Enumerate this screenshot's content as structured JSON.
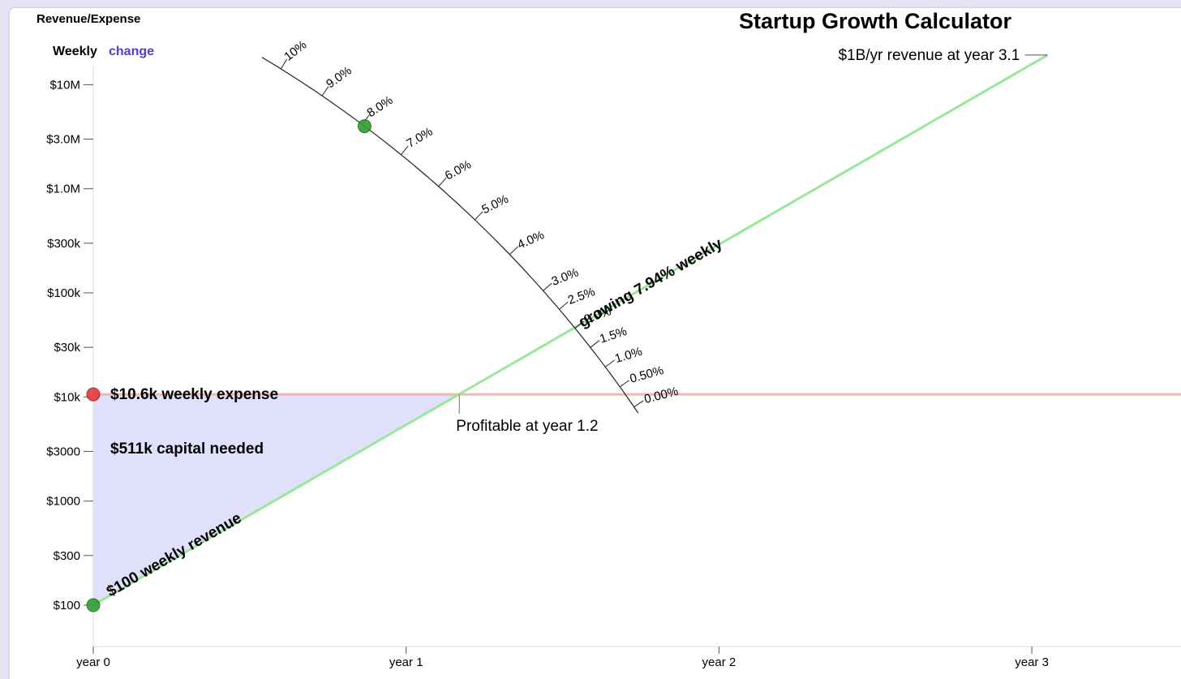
{
  "header": {
    "ylabel": "Revenue/Expense",
    "period": "Weekly",
    "change_label": "change",
    "title": "Startup Growth Calculator"
  },
  "colors": {
    "revenue": "#98e898",
    "revenue_handle": "#2f9d2f",
    "expense": "#f5b5b5",
    "expense_handle": "#e03a3a",
    "capital_fill": "#e1e0fa",
    "link": "#4a40d8"
  },
  "chart_data": {
    "type": "line",
    "title": "Startup Growth Calculator",
    "ylabel": "Revenue/Expense",
    "xlabel": "",
    "y_scale": "log",
    "ylim": [
      60,
      20000000
    ],
    "xlim": [
      0,
      3.5
    ],
    "y_ticks": [
      {
        "value": 10000000,
        "label": "$10M"
      },
      {
        "value": 3000000,
        "label": "$3.0M"
      },
      {
        "value": 1000000,
        "label": "$1.0M"
      },
      {
        "value": 300000,
        "label": "$300k"
      },
      {
        "value": 100000,
        "label": "$100k"
      },
      {
        "value": 30000,
        "label": "$30k"
      },
      {
        "value": 10000,
        "label": "$10k"
      },
      {
        "value": 3000,
        "label": "$3000"
      },
      {
        "value": 1000,
        "label": "$1000"
      },
      {
        "value": 300,
        "label": "$300"
      },
      {
        "value": 100,
        "label": "$100"
      }
    ],
    "x_ticks": [
      {
        "value": 0,
        "label": "year 0"
      },
      {
        "value": 1,
        "label": "year 1"
      },
      {
        "value": 2,
        "label": "year 2"
      },
      {
        "value": 3,
        "label": "year 3"
      }
    ],
    "series": [
      {
        "name": "Weekly revenue",
        "start_value": 100,
        "weekly_growth_pct": 7.94,
        "x_end": 3.05,
        "y_end": 19230769
      },
      {
        "name": "Weekly expense",
        "value": 10600
      }
    ],
    "growth_dial": {
      "labels": [
        "0.00%",
        "0.50%",
        "1.0%",
        "1.5%",
        "2.0%",
        "2.5%",
        "3.0%",
        "4.0%",
        "5.0%",
        "6.0%",
        "7.0%",
        "8.0%",
        "9.0%",
        "10%"
      ],
      "values": [
        0,
        0.5,
        1.0,
        1.5,
        2.0,
        2.5,
        3.0,
        4.0,
        5.0,
        6.0,
        7.0,
        8.0,
        9.0,
        10.0
      ],
      "selected": 7.94
    },
    "annotations": {
      "revenue_label": "$100 weekly revenue",
      "expense_label": "$10.6k weekly expense",
      "capital_label": "$511k capital needed",
      "growth_label": "growing 7.94% weekly",
      "profitable_label": "Profitable at year 1.2",
      "profitable_year": 1.17,
      "target_label": "$1B/yr revenue at year 3.1"
    }
  }
}
